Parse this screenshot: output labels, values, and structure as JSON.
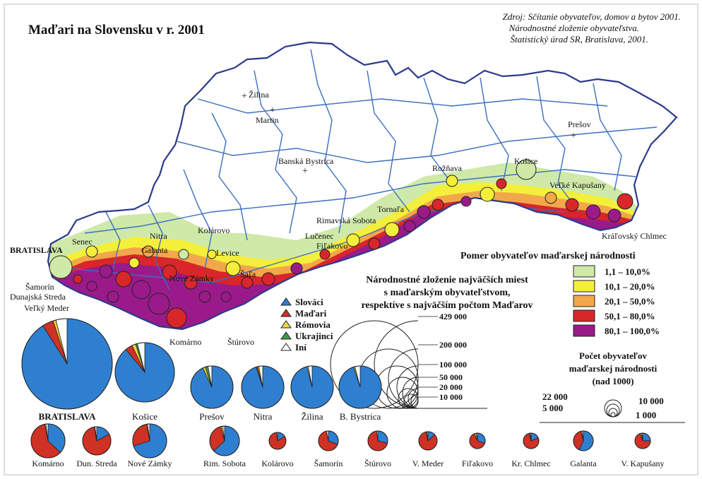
{
  "title": "Maďari na Slovensku v r. 2001",
  "source": [
    "Zdroj: Sčítanie obyvateľov, domov a bytov 2001.",
    "Národnostné zloženie obyvateľstva.",
    "Štatistický úrad SR, Bratislava, 2001."
  ],
  "colors": {
    "border": "#2b3a8c",
    "district": "#3a6fc0",
    "c1": "#cfe9a8",
    "c2": "#f4ef3a",
    "c3": "#f2a84a",
    "c4": "#d8262a",
    "c5": "#9a1a8a",
    "slovaci": "#2f7fd1",
    "madari": "#cf3125",
    "romovia": "#f2d53a",
    "ukrajinci": "#3b9a4a",
    "ini": "#ffffff"
  },
  "cities": [
    {
      "name": "Žilina"
    },
    {
      "name": "Martin"
    },
    {
      "name": "Prešov"
    },
    {
      "name": "Banská Bystrica"
    },
    {
      "name": "Rožňava"
    },
    {
      "name": "Košice"
    },
    {
      "name": "Veľké Kapušany"
    },
    {
      "name": "Rimavská Sobota"
    },
    {
      "name": "Tornaľa"
    },
    {
      "name": "Lučenec"
    },
    {
      "name": "Fiľakovo"
    },
    {
      "name": "Kráľovský Chlmec"
    },
    {
      "name": "Senec"
    },
    {
      "name": "BRATISLAVA"
    },
    {
      "name": "Nitra"
    },
    {
      "name": "Kolárovo"
    },
    {
      "name": "Galanta"
    },
    {
      "name": "Levice"
    },
    {
      "name": "Nové Zámky"
    },
    {
      "name": "Šaľa"
    },
    {
      "name": "Šamorín"
    },
    {
      "name": "Dunajská Streda"
    },
    {
      "name": "Veľký Meder"
    },
    {
      "name": "Komárno"
    },
    {
      "name": "Štúrovo"
    }
  ],
  "legend_pies": {
    "items": [
      {
        "label": "Slováci",
        "color": "#2f7fd1"
      },
      {
        "label": "Maďari",
        "color": "#cf3125"
      },
      {
        "label": "Rómovia",
        "color": "#f2d53a"
      },
      {
        "label": "Ukrajinci",
        "color": "#3b9a4a"
      },
      {
        "label": "Iní",
        "color": "#ffffff"
      }
    ]
  },
  "legend_ratio": {
    "title": "Pomer obyvateľov maďarskej národnosti",
    "classes": [
      {
        "label": "1,1   –   10,0%",
        "color": "#cfe9a8"
      },
      {
        "label": "10,1   –   20,0%",
        "color": "#f4ef3a"
      },
      {
        "label": "20,1   –   50,0%",
        "color": "#f2a84a"
      },
      {
        "label": "50,1   –   80,0%",
        "color": "#d8262a"
      },
      {
        "label": "80,1   –  100,0%",
        "color": "#9a1a8a"
      }
    ]
  },
  "legend_composition_title": [
    "Národnostné zloženie najväčších miest",
    "s maďarským obyvateľstvom,",
    "respektíve s najväčším počtom Maďarov"
  ],
  "legend_size": {
    "values": [
      "429 000",
      "200 000",
      "100 000",
      "50 000",
      "20 000",
      "10 000"
    ]
  },
  "legend_count": {
    "title": [
      "Počet obyvateľov",
      "maďarskej národnosti",
      "(nad 1000)"
    ],
    "values": [
      "22 000",
      "10 000",
      "5 000",
      "1 000"
    ]
  },
  "pies_large": [
    {
      "name": "BRATISLAVA",
      "shares": [
        0.91,
        0.04,
        0.01,
        0.0,
        0.04
      ]
    },
    {
      "name": "Košice",
      "shares": [
        0.89,
        0.04,
        0.02,
        0.01,
        0.04
      ]
    },
    {
      "name": "Prešov",
      "shares": [
        0.93,
        0.0,
        0.02,
        0.02,
        0.03
      ]
    },
    {
      "name": "Nitra",
      "shares": [
        0.95,
        0.01,
        0.01,
        0.0,
        0.03
      ]
    },
    {
      "name": "Žilina",
      "shares": [
        0.96,
        0.0,
        0.01,
        0.0,
        0.03
      ]
    },
    {
      "name": "B. Bystrica",
      "shares": [
        0.95,
        0.0,
        0.01,
        0.0,
        0.04
      ]
    }
  ],
  "pies_small": [
    {
      "name": "Komárno",
      "shares": [
        0.37,
        0.6,
        0.01,
        0.0,
        0.02
      ]
    },
    {
      "name": "Dun. Streda",
      "shares": [
        0.17,
        0.8,
        0.01,
        0.0,
        0.02
      ]
    },
    {
      "name": "Nové Zámky",
      "shares": [
        0.7,
        0.27,
        0.01,
        0.0,
        0.02
      ]
    },
    {
      "name": "Rim. Sobota",
      "shares": [
        0.63,
        0.33,
        0.02,
        0.0,
        0.02
      ]
    },
    {
      "name": "Kolárovo",
      "shares": [
        0.16,
        0.82,
        0.0,
        0.0,
        0.02
      ]
    },
    {
      "name": "Šamorín",
      "shares": [
        0.31,
        0.66,
        0.0,
        0.0,
        0.03
      ]
    },
    {
      "name": "Štúrovo",
      "shares": [
        0.29,
        0.69,
        0.0,
        0.0,
        0.02
      ]
    },
    {
      "name": "V. Meder",
      "shares": [
        0.13,
        0.84,
        0.01,
        0.0,
        0.02
      ]
    },
    {
      "name": "Fiľakovo",
      "shares": [
        0.3,
        0.64,
        0.04,
        0.0,
        0.02
      ]
    },
    {
      "name": "Kr. Chlmec",
      "shares": [
        0.19,
        0.77,
        0.02,
        0.0,
        0.02
      ]
    },
    {
      "name": "Galanta",
      "shares": [
        0.57,
        0.39,
        0.02,
        0.0,
        0.02
      ]
    },
    {
      "name": "V. Kapušany",
      "shares": [
        0.25,
        0.7,
        0.03,
        0.0,
        0.02
      ]
    }
  ]
}
